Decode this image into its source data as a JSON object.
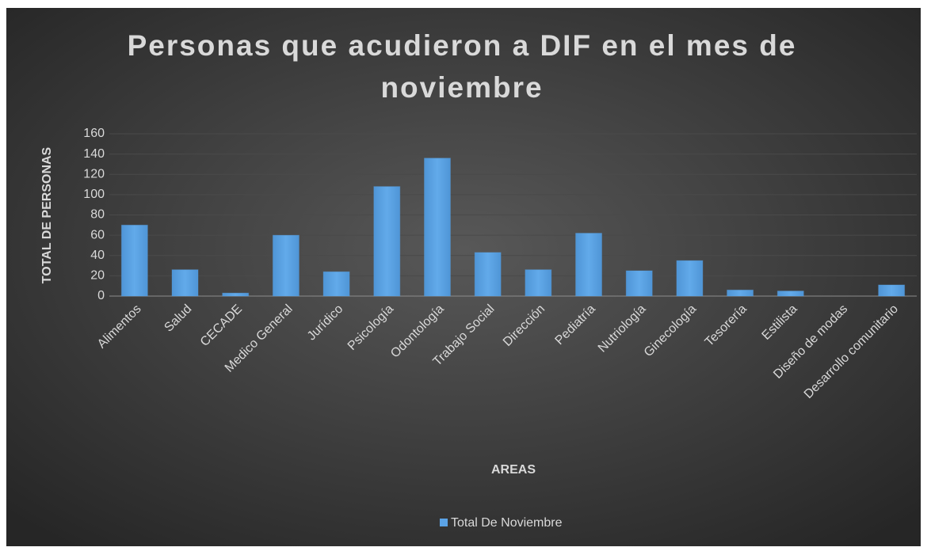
{
  "chart_data": {
    "type": "bar",
    "title": [
      "Personas que acudieron a DIF en el mes de",
      "noviembre"
    ],
    "x_label": "AREAS",
    "y_label": "TOTAL DE PERSONAS",
    "categories": [
      "Alimentos",
      "Salud",
      "CECADE",
      "Medico General",
      "Jurídico",
      "Psicología",
      "Odontología",
      "Trabajo Social",
      "Dirección",
      "Pediatría",
      "Nutriología",
      "Ginecología",
      "Tesorería",
      "Estilista",
      "Diseño de modas",
      "Desarrollo comunitario"
    ],
    "series": [
      {
        "name": "Total De Noviembre",
        "color": "#5ba3e6",
        "values": [
          70,
          26,
          3,
          60,
          24,
          108,
          136,
          43,
          26,
          62,
          25,
          35,
          6,
          5,
          0,
          11
        ]
      }
    ],
    "ylim": [
      0,
      160
    ],
    "yticks": [
      0,
      20,
      40,
      60,
      80,
      100,
      120,
      140,
      160
    ],
    "grid": true,
    "legend": "bottom"
  }
}
